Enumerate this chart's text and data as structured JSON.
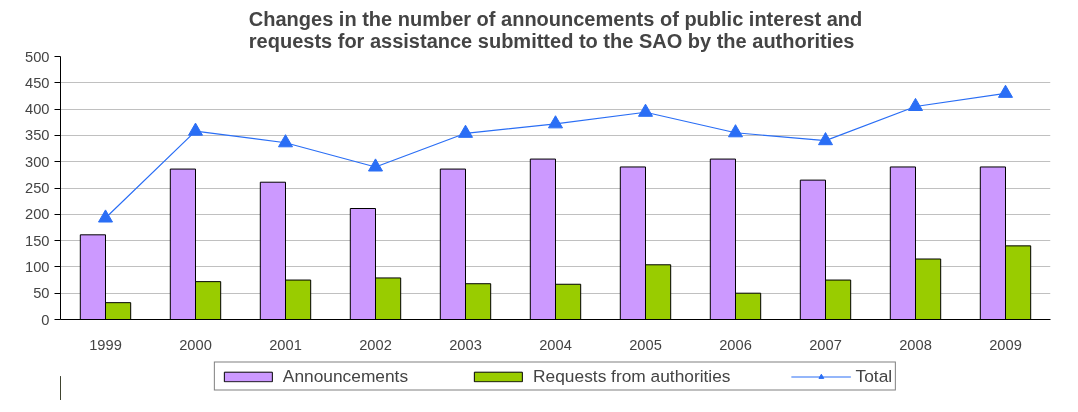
{
  "chart_data": {
    "type": "bar",
    "title": "Changes in the number of announcements of public interest and\nrequests for assistance submitted to the SAO by the authorities",
    "categories": [
      "1999",
      "2000",
      "2001",
      "2002",
      "2003",
      "2004",
      "2005",
      "2006",
      "2007",
      "2008",
      "2009"
    ],
    "series": [
      {
        "name": "Announcements",
        "color": "#cc99ff",
        "values": [
          161,
          286,
          261,
          211,
          286,
          305,
          290,
          305,
          265,
          290,
          290
        ]
      },
      {
        "name": "Requests from authorities",
        "color": "#99cc00",
        "values": [
          32,
          72,
          75,
          79,
          68,
          67,
          104,
          50,
          75,
          115,
          140
        ]
      },
      {
        "name": "Total",
        "type": "line",
        "color": "#2a6ef5",
        "marker": "triangle",
        "values": [
          193,
          358,
          336,
          290,
          354,
          372,
          394,
          355,
          340,
          405,
          430
        ]
      }
    ],
    "ylim": [
      0,
      500
    ],
    "yticks": [
      0,
      50,
      100,
      150,
      200,
      250,
      300,
      350,
      400,
      450,
      500
    ],
    "grid": "y",
    "legend": "bottom"
  }
}
